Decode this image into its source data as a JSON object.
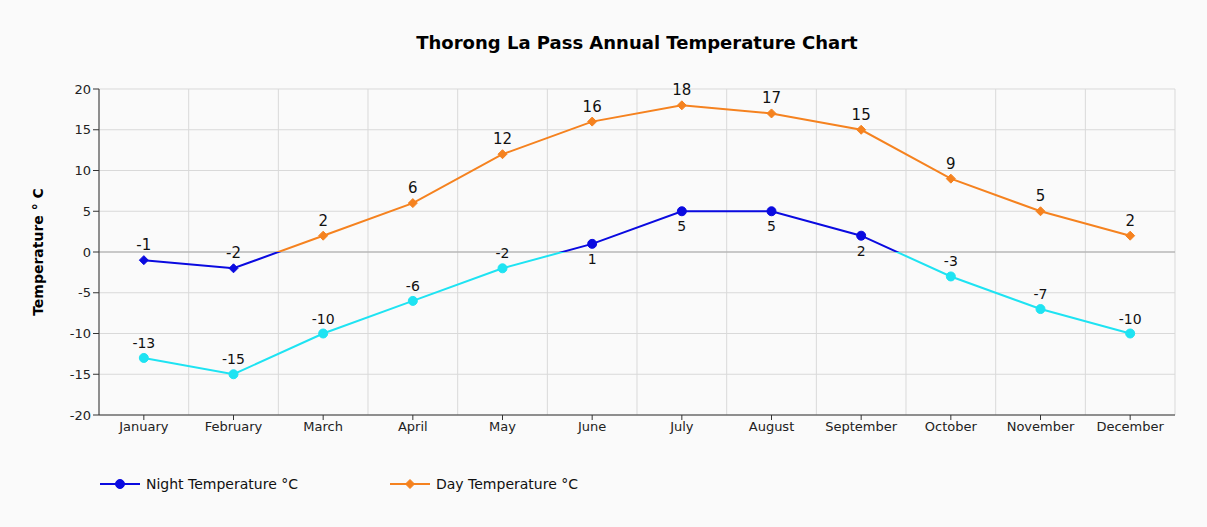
{
  "chart_data": {
    "type": "line",
    "title": "Thorong La Pass Annual Temperature Chart",
    "y_label": "Temperature ° C",
    "categories": [
      "January",
      "February",
      "March",
      "April",
      "May",
      "June",
      "July",
      "August",
      "September",
      "October",
      "November",
      "December"
    ],
    "series": [
      {
        "name": "Night Temperature °C",
        "color": "#0a0ae0",
        "marker": "circle",
        "colors": [
          "#1ee3f2",
          "#1ee3f2",
          "#1ee3f2",
          "#1ee3f2",
          "#1ee3f2",
          "#0a0ae0",
          "#0a0ae0",
          "#0a0ae0",
          "#0a0ae0",
          "#1ee3f2",
          "#1ee3f2",
          "#1ee3f2"
        ],
        "values": [
          -13,
          -15,
          -10,
          -6,
          -2,
          1,
          5,
          5,
          2,
          -3,
          -7,
          -10
        ]
      },
      {
        "name": "Day Temperature °C",
        "color": "#f5821f",
        "marker": "diamond",
        "colors": [
          "#0a0ae0",
          "#0a0ae0",
          "#f5821f",
          "#f5821f",
          "#f5821f",
          "#f5821f",
          "#f5821f",
          "#f5821f",
          "#f5821f",
          "#f5821f",
          "#f5821f",
          "#f5821f"
        ],
        "values": [
          -1,
          -2,
          2,
          6,
          12,
          16,
          18,
          17,
          15,
          9,
          5,
          2
        ]
      }
    ],
    "ylim": [
      -20,
      20
    ],
    "yticks": [
      -20,
      -15,
      -10,
      -5,
      0,
      5,
      10,
      15,
      20
    ],
    "grid": true,
    "data_labels": true,
    "legend": "bottom left"
  }
}
